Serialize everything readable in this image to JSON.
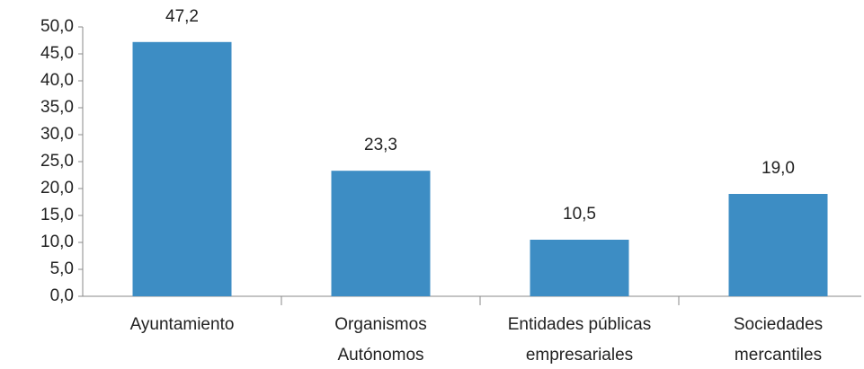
{
  "chart_data": {
    "type": "bar",
    "categories": [
      "Ayuntamiento",
      "Organismos\nAutónomos",
      "Entidades públicas\nempresariales",
      "Sociedades\nmercantiles"
    ],
    "values": [
      47.2,
      23.3,
      10.5,
      19.0
    ],
    "value_labels": [
      "47,2",
      "23,3",
      "10,5",
      "19,0"
    ],
    "color": "#3d8dc4",
    "ylim": [
      0,
      50
    ],
    "yticks": [
      {
        "value": 0,
        "label": "0,0"
      },
      {
        "value": 5,
        "label": "5,0"
      },
      {
        "value": 10,
        "label": "10,0"
      },
      {
        "value": 15,
        "label": "15,0"
      },
      {
        "value": 20,
        "label": "20,0"
      },
      {
        "value": 25,
        "label": "25,0"
      },
      {
        "value": 30,
        "label": "30,0"
      },
      {
        "value": 35,
        "label": "35,0"
      },
      {
        "value": 40,
        "label": "40,0"
      },
      {
        "value": 45,
        "label": "45,0"
      },
      {
        "value": 50,
        "label": "50,0"
      }
    ],
    "grid": false
  }
}
